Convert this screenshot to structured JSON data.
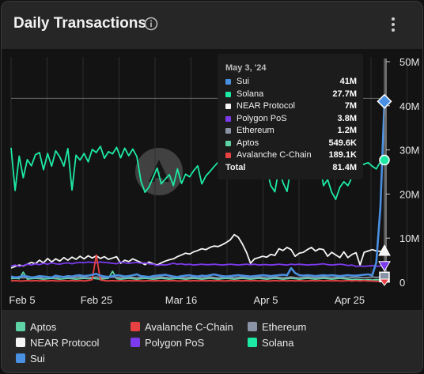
{
  "header": {
    "title": "Daily Transactions"
  },
  "icons": {
    "info": "info-circle-icon",
    "menu": "more-vertical-icon",
    "watermark": "artemis-logo-icon"
  },
  "tooltip": {
    "date": "May 3, '24",
    "rows": [
      {
        "name": "Sui",
        "value": "41M",
        "color": "#4a90e2"
      },
      {
        "name": "Solana",
        "value": "27.7M",
        "color": "#1de9a4"
      },
      {
        "name": "NEAR Protocol",
        "value": "7M",
        "color": "#f5f5f5"
      },
      {
        "name": "Polygon PoS",
        "value": "3.8M",
        "color": "#7c3aed"
      },
      {
        "name": "Ethereum",
        "value": "1.2M",
        "color": "#8a94a6"
      },
      {
        "name": "Aptos",
        "value": "549.6K",
        "color": "#5fd3a5"
      },
      {
        "name": "Avalanche C-Chain",
        "value": "189.1K",
        "color": "#e84142"
      }
    ],
    "total": {
      "name": "Total",
      "value": "81.4M"
    }
  },
  "legend": [
    {
      "name": "Aptos",
      "color": "#5fd3a5"
    },
    {
      "name": "Avalanche C-Chain",
      "color": "#e84142"
    },
    {
      "name": "Ethereum",
      "color": "#8a94a6"
    },
    {
      "name": "NEAR Protocol",
      "color": "#f5f5f5"
    },
    {
      "name": "Polygon PoS",
      "color": "#7c3aed"
    },
    {
      "name": "Solana",
      "color": "#1de9a4"
    },
    {
      "name": "Sui",
      "color": "#4a90e2"
    }
  ],
  "chart_data": {
    "type": "line",
    "title": "Daily Transactions",
    "x_start": "2024-02-01",
    "x_end": "2024-05-03",
    "x_ticks": [
      "Feb 5",
      "Feb 25",
      "Mar 16",
      "Apr 5",
      "Apr 25"
    ],
    "y_ticks": [
      "0",
      "10M",
      "20M",
      "30M",
      "40M",
      "50M"
    ],
    "ylim": [
      0,
      50000000
    ],
    "grid": true,
    "legend_position": "bottom",
    "series": [
      {
        "name": "Solana",
        "color": "#1de9a4",
        "values": [
          30.5,
          20.8,
          28.6,
          23.7,
          27.8,
          26.4,
          28.9,
          29.4,
          25.5,
          29.2,
          26.3,
          29.8,
          28.4,
          26.3,
          30.3,
          20.9,
          28.8,
          27.7,
          29.2,
          27.3,
          30.1,
          29.4,
          30.8,
          28.1,
          29.6,
          29.1,
          30.6,
          28.2,
          30.4,
          28.7,
          30.2,
          28.5,
          22.9,
          20.4,
          21.6,
          23.8,
          25.9,
          22.3,
          23.4,
          24.4,
          21.9,
          25.7,
          22.4,
          24.5,
          23.9,
          25.3,
          26.4,
          22.3,
          24.1,
          25.1,
          26.2,
          27.2,
          24.3,
          26.7,
          25.5,
          26.9,
          28.3,
          26.3,
          28.1,
          29.3,
          27.1,
          30.3,
          24.3,
          25.8,
          21.9,
          20.5,
          25.8,
          22.6,
          20.6,
          26.3,
          28.1,
          27.3,
          25.9,
          26.2,
          27.7,
          28.1,
          27.3,
          21.9,
          23.3,
          20.4,
          18.8,
          21.5,
          22.8,
          21.9,
          23.8,
          24.1,
          26.4,
          26.8,
          27.1,
          26.3,
          25.7,
          27.3,
          27.7
        ]
      },
      {
        "name": "NEAR Protocol",
        "color": "#f5f5f5",
        "values": [
          3.2,
          3.6,
          3.9,
          3.7,
          4.1,
          4.5,
          4.2,
          5.0,
          4.4,
          5.4,
          4.6,
          5.3,
          4.8,
          5.6,
          5.0,
          5.7,
          5.2,
          5.9,
          5.3,
          6.0,
          5.5,
          6.0,
          5.4,
          5.8,
          5.2,
          5.5,
          5.8,
          4.3,
          5.0,
          4.7,
          5.3,
          4.9,
          4.5,
          4.0,
          4.6,
          4.2,
          3.9,
          4.4,
          4.8,
          5.1,
          5.3,
          5.8,
          6.2,
          6.6,
          6.4,
          6.9,
          7.2,
          7.6,
          7.4,
          7.9,
          8.2,
          8.1,
          8.5,
          9.0,
          9.6,
          10.8,
          10.2,
          8.7,
          6.8,
          4.3,
          5.3,
          5.6,
          5.9,
          5.7,
          6.3,
          6.1,
          7.6,
          7.2,
          7.9,
          7.4,
          5.9,
          6.6,
          6.8,
          7.4,
          7.9,
          7.1,
          7.6,
          7.4,
          5.9,
          6.8,
          6.2,
          5.6,
          6.9,
          5.6,
          6.3,
          6.7,
          3.9,
          6.8,
          7.1,
          7.4,
          7.1,
          7.0,
          7.0
        ]
      },
      {
        "name": "Polygon PoS",
        "color": "#7c3aed",
        "values": [
          3.7,
          3.9,
          3.6,
          3.8,
          4.1,
          3.9,
          4.2,
          4.0,
          4.3,
          4.1,
          4.4,
          4.2,
          4.1,
          4.3,
          4.4,
          4.2,
          4.4,
          4.5,
          4.4,
          4.6,
          4.5,
          4.4,
          4.6,
          4.5,
          4.4,
          4.3,
          4.2,
          4.6,
          4.4,
          4.3,
          4.4,
          4.5,
          4.3,
          4.4,
          4.2,
          4.1,
          3.8,
          4.0,
          3.9,
          4.1,
          4.3,
          4.1,
          4.2,
          4.0,
          4.1,
          3.9,
          4.0,
          4.1,
          4.0,
          4.0,
          4.1,
          4.0,
          3.9,
          4.0,
          4.1,
          4.0,
          3.9,
          4.0,
          4.1,
          4.0,
          4.1,
          3.9,
          4.0,
          4.0,
          3.9,
          4.0,
          4.1,
          4.0,
          3.9,
          4.1,
          4.0,
          4.1,
          4.0,
          3.9,
          4.0,
          4.0,
          4.1,
          4.2,
          4.0,
          3.9,
          4.0,
          4.1,
          4.0,
          3.8,
          3.9,
          3.6,
          3.7,
          3.6,
          3.7,
          3.8,
          3.6,
          3.7,
          3.8
        ]
      },
      {
        "name": "Sui",
        "color": "#4a90e2",
        "values": [
          1.3,
          1.1,
          1.2,
          1.5,
          1.3,
          1.1,
          1.2,
          1.4,
          1.3,
          1.2,
          1.1,
          1.5,
          1.3,
          1.2,
          1.4,
          1.3,
          1.5,
          1.6,
          1.4,
          1.5,
          1.7,
          1.9,
          1.5,
          1.3,
          1.2,
          1.4,
          1.6,
          1.5,
          1.3,
          1.4,
          1.6,
          1.8,
          1.4,
          1.3,
          1.2,
          1.4,
          1.5,
          1.6,
          1.7,
          1.5,
          1.3,
          1.2,
          1.4,
          1.5,
          1.6,
          1.4,
          1.3,
          1.5,
          1.4,
          1.6,
          1.8,
          1.6,
          1.4,
          1.3,
          1.4,
          1.5,
          1.6,
          1.5,
          1.4,
          1.3,
          1.4,
          1.5,
          1.6,
          1.5,
          1.4,
          1.5,
          1.6,
          1.7,
          1.6,
          3.2,
          2.1,
          1.6,
          1.5,
          1.6,
          1.5,
          1.4,
          1.5,
          1.6,
          1.5,
          1.6,
          1.5,
          1.4,
          1.5,
          1.6,
          1.5,
          1.5,
          1.6,
          1.7,
          1.8,
          1.6,
          4.5,
          17.0,
          41.0
        ]
      },
      {
        "name": "Avalanche C-Chain",
        "color": "#e84142",
        "values": [
          0.3,
          0.4,
          0.3,
          0.3,
          0.4,
          0.3,
          0.4,
          0.3,
          0.4,
          0.3,
          0.4,
          0.3,
          0.3,
          0.4,
          0.3,
          0.4,
          0.3,
          0.4,
          0.3,
          0.4,
          0.6,
          6.2,
          0.5,
          0.4,
          0.3,
          0.4,
          0.3,
          0.4,
          0.3,
          0.4,
          0.3,
          0.4,
          0.3,
          0.3,
          0.4,
          0.3,
          0.4,
          0.3,
          0.4,
          0.3,
          0.4,
          0.3,
          0.3,
          0.4,
          0.3,
          0.4,
          0.3,
          0.4,
          0.3,
          0.4,
          0.3,
          0.4,
          0.3,
          0.3,
          0.4,
          0.3,
          0.4,
          0.3,
          0.4,
          0.3,
          0.4,
          0.3,
          0.4,
          0.3,
          0.3,
          0.4,
          0.3,
          0.4,
          0.3,
          0.4,
          0.3,
          0.4,
          0.3,
          0.3,
          0.4,
          0.3,
          0.4,
          0.3,
          0.4,
          0.3,
          0.4,
          0.3,
          0.3,
          0.4,
          0.3,
          0.4,
          0.3,
          0.4,
          0.3,
          0.3,
          0.2,
          0.2,
          0.19
        ]
      },
      {
        "name": "Aptos",
        "color": "#5fd3a5",
        "values": [
          0.8,
          0.9,
          0.8,
          2.3,
          0.7,
          0.8,
          0.9,
          0.8,
          0.7,
          0.8,
          0.9,
          0.8,
          0.7,
          0.8,
          0.9,
          0.8,
          0.7,
          0.8,
          0.9,
          0.8,
          0.9,
          0.8,
          0.7,
          0.8,
          0.9,
          2.5,
          0.8,
          0.7,
          0.8,
          0.9,
          0.8,
          0.7,
          0.8,
          0.9,
          0.8,
          0.7,
          0.8,
          0.9,
          0.8,
          0.7,
          0.8,
          0.9,
          0.8,
          0.7,
          0.8,
          0.9,
          0.8,
          0.7,
          0.8,
          0.9,
          0.8,
          0.7,
          0.8,
          0.9,
          0.8,
          0.7,
          0.8,
          0.9,
          0.8,
          0.7,
          0.8,
          0.9,
          0.8,
          0.7,
          0.8,
          0.9,
          0.8,
          0.7,
          0.8,
          0.9,
          0.8,
          0.7,
          0.8,
          0.9,
          0.8,
          0.7,
          0.8,
          0.9,
          0.8,
          0.7,
          0.8,
          0.9,
          0.8,
          0.7,
          0.6,
          0.7,
          0.6,
          0.5,
          0.6,
          0.5,
          0.6,
          0.55,
          0.55
        ]
      },
      {
        "name": "Ethereum",
        "color": "#8a94a6",
        "values": [
          1.1,
          1.2,
          1.1,
          1.0,
          1.1,
          1.2,
          1.1,
          1.0,
          1.1,
          1.2,
          1.1,
          1.0,
          1.1,
          1.2,
          1.1,
          1.0,
          1.1,
          1.2,
          1.1,
          1.0,
          1.1,
          1.2,
          1.1,
          1.0,
          1.1,
          1.2,
          1.1,
          1.0,
          1.1,
          1.2,
          1.1,
          1.0,
          1.1,
          1.2,
          1.1,
          1.0,
          1.1,
          1.2,
          1.1,
          1.0,
          1.1,
          1.2,
          1.1,
          1.0,
          1.1,
          1.2,
          1.1,
          1.0,
          1.1,
          1.2,
          1.1,
          1.0,
          1.1,
          1.2,
          1.1,
          1.0,
          1.1,
          1.2,
          1.1,
          1.0,
          1.1,
          1.2,
          1.1,
          1.0,
          1.1,
          1.2,
          1.1,
          1.0,
          1.1,
          1.2,
          1.1,
          1.0,
          1.1,
          1.2,
          1.1,
          1.0,
          1.1,
          1.2,
          1.1,
          1.0,
          1.1,
          1.2,
          1.1,
          1.0,
          1.1,
          1.2,
          1.1,
          1.0,
          1.1,
          1.2,
          1.1,
          1.2,
          1.2
        ]
      }
    ]
  }
}
